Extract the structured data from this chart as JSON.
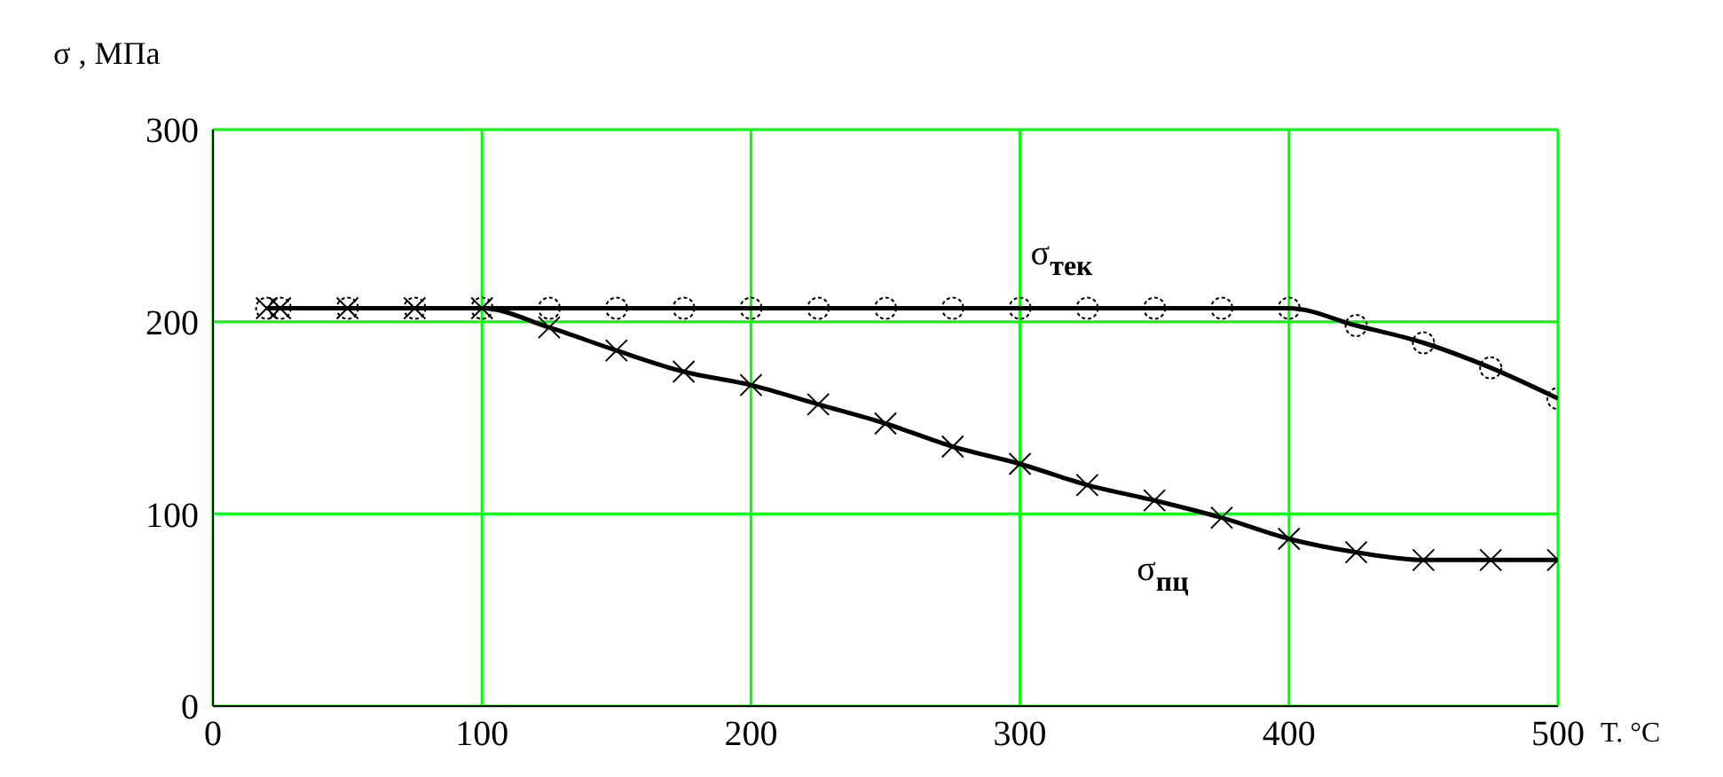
{
  "chart_data": {
    "type": "line",
    "ylabel": "σ , МПа",
    "xlabel": "T. °C",
    "x": [
      20,
      25,
      50,
      75,
      100,
      125,
      150,
      175,
      200,
      225,
      250,
      275,
      300,
      325,
      350,
      375,
      400,
      425,
      450,
      475,
      500
    ],
    "series": [
      {
        "name": "σ$_{тек}$",
        "color": "#000000",
        "marker": "circle",
        "values": [
          207,
          207,
          207,
          207,
          207,
          207,
          207,
          207,
          207,
          207,
          207,
          207,
          207,
          207,
          207,
          207,
          207,
          198,
          189,
          176,
          160
        ]
      },
      {
        "name": "σ$_{пц}$",
        "color": "#000000",
        "marker": "cross",
        "values": [
          207,
          207,
          207,
          207,
          207,
          197,
          185,
          174,
          167,
          157,
          147,
          135,
          126,
          115,
          107,
          98,
          87,
          80,
          76,
          76,
          76
        ]
      }
    ],
    "xlim": [
      0,
      500
    ],
    "xticks": [
      0,
      100,
      200,
      300,
      400,
      500
    ],
    "ylim": [
      0,
      300
    ],
    "yticks": [
      0,
      100,
      200,
      300
    ],
    "grid": true,
    "line_style": "solid"
  }
}
